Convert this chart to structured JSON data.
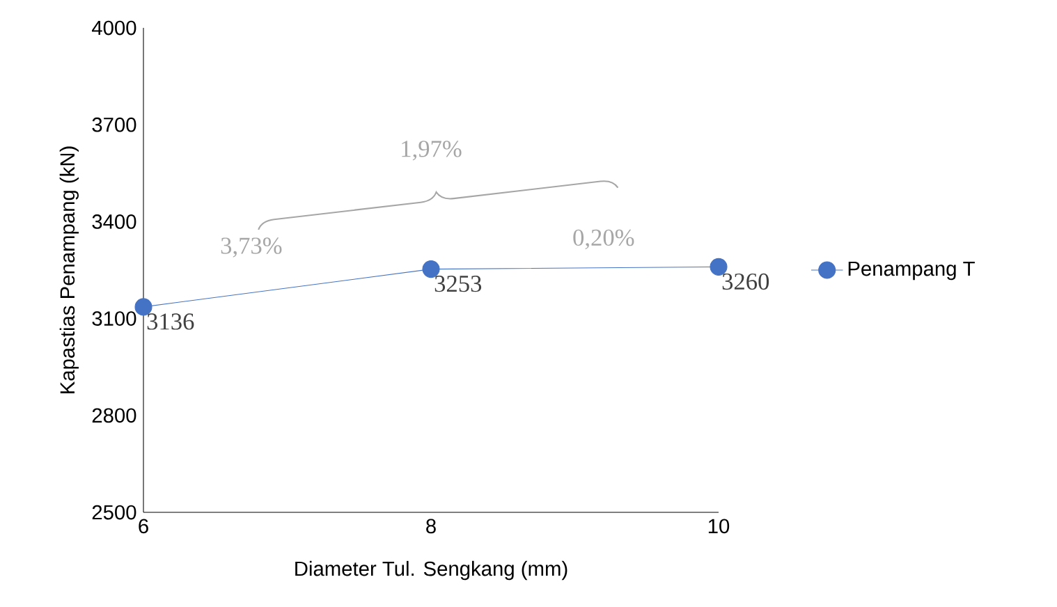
{
  "chart_data": {
    "type": "line",
    "xlabel": "Diameter Tul. Sengkang (mm)",
    "ylabel": "Kapastias  Penampang (kN)",
    "x": [
      6,
      8,
      10
    ],
    "series": [
      {
        "name": "Penampang T",
        "color": "#4472c4",
        "values": [
          3136,
          3253,
          3260
        ]
      }
    ],
    "xlim": [
      6,
      10
    ],
    "xticks": [
      6,
      8,
      10
    ],
    "ylim": [
      2500,
      4000
    ],
    "yticks": [
      2500,
      2800,
      3100,
      3400,
      3700,
      4000
    ],
    "marker": "circle",
    "legend": "right",
    "data_labels": true,
    "annotations": [
      "1,97%",
      "3,73%",
      "0,20%"
    ]
  }
}
